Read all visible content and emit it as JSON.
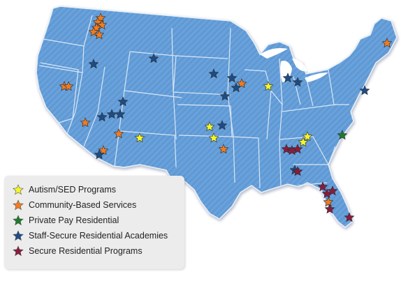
{
  "colors": {
    "land": "#5f98d3",
    "border": "#e6eff8",
    "autism": "#f5f52a",
    "community": "#f07c22",
    "private": "#1f7a2c",
    "staff": "#1d4c86",
    "secure": "#8a1b3c"
  },
  "legend": {
    "items": [
      {
        "key": "autism",
        "label": "Autism/SED Programs",
        "icon": "star-yellow-icon"
      },
      {
        "key": "community",
        "label": "Community-Based Services",
        "icon": "star-orange-icon"
      },
      {
        "key": "private",
        "label": "Private Pay Residential",
        "icon": "star-green-icon"
      },
      {
        "key": "staff",
        "label": "Staff-Secure Residential Academies",
        "icon": "star-navy-icon"
      },
      {
        "key": "secure",
        "label": "Secure Residential Programs",
        "icon": "star-maroon-icon"
      }
    ]
  }
}
